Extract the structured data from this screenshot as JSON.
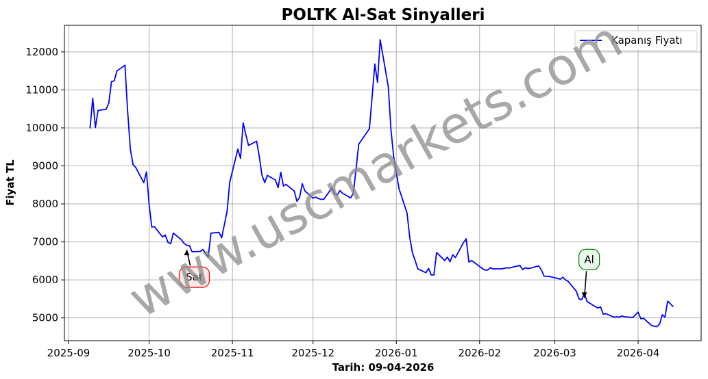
{
  "chart_data": {
    "type": "line",
    "title": "POLTK Al-Sat Sinyalleri",
    "xlabel": "Tarih: 09-04-2026",
    "ylabel": "Fiyat TL",
    "xlim": [
      "2025-09-01",
      "2026-04-14"
    ],
    "ylim": [
      4400,
      12700
    ],
    "grid": true,
    "legend_position": "top-right",
    "x_ticks": [
      "2025-09",
      "2025-10",
      "2025-11",
      "2025-12",
      "2026-01",
      "2026-02",
      "2026-03",
      "2026-04"
    ],
    "y_ticks": [
      5000,
      6000,
      7000,
      8000,
      9000,
      10000,
      11000,
      12000
    ],
    "series": [
      {
        "name": "Kapanış Fiyatı",
        "color": "#0000ff",
        "points": [
          [
            "2025-09-09",
            10000
          ],
          [
            "2025-09-10",
            10780
          ],
          [
            "2025-09-11",
            10010
          ],
          [
            "2025-09-12",
            10460
          ],
          [
            "2025-09-15",
            10490
          ],
          [
            "2025-09-16",
            10660
          ],
          [
            "2025-09-17",
            11220
          ],
          [
            "2025-09-18",
            11240
          ],
          [
            "2025-09-19",
            11500
          ],
          [
            "2025-09-22",
            11650
          ],
          [
            "2025-09-23",
            10450
          ],
          [
            "2025-09-24",
            9440
          ],
          [
            "2025-09-25",
            9040
          ],
          [
            "2025-09-26",
            8960
          ],
          [
            "2025-09-29",
            8560
          ],
          [
            "2025-09-30",
            8840
          ],
          [
            "2025-10-01",
            7980
          ],
          [
            "2025-10-02",
            7390
          ],
          [
            "2025-10-03",
            7400
          ],
          [
            "2025-10-06",
            7130
          ],
          [
            "2025-10-07",
            7180
          ],
          [
            "2025-10-08",
            6990
          ],
          [
            "2025-10-09",
            6950
          ],
          [
            "2025-10-10",
            7230
          ],
          [
            "2025-10-13",
            7060
          ],
          [
            "2025-10-14",
            6960
          ],
          [
            "2025-10-15",
            6910
          ],
          [
            "2025-10-16",
            6900
          ],
          [
            "2025-10-17",
            6740
          ],
          [
            "2025-10-20",
            6750
          ],
          [
            "2025-10-21",
            6800
          ],
          [
            "2025-10-22",
            6700
          ],
          [
            "2025-10-23",
            6600
          ],
          [
            "2025-10-24",
            7230
          ],
          [
            "2025-10-27",
            7250
          ],
          [
            "2025-10-28",
            7110
          ],
          [
            "2025-10-30",
            7800
          ],
          [
            "2025-10-31",
            8570
          ],
          [
            "2025-11-03",
            9440
          ],
          [
            "2025-11-04",
            9200
          ],
          [
            "2025-11-05",
            10130
          ],
          [
            "2025-11-06",
            9820
          ],
          [
            "2025-11-07",
            9540
          ],
          [
            "2025-11-10",
            9650
          ],
          [
            "2025-11-11",
            9250
          ],
          [
            "2025-11-12",
            8760
          ],
          [
            "2025-11-13",
            8560
          ],
          [
            "2025-11-14",
            8750
          ],
          [
            "2025-11-17",
            8630
          ],
          [
            "2025-11-18",
            8430
          ],
          [
            "2025-11-19",
            8830
          ],
          [
            "2025-11-20",
            8470
          ],
          [
            "2025-11-21",
            8510
          ],
          [
            "2025-11-24",
            8340
          ],
          [
            "2025-11-25",
            8070
          ],
          [
            "2025-11-26",
            8170
          ],
          [
            "2025-11-27",
            8530
          ],
          [
            "2025-11-28",
            8340
          ],
          [
            "2025-12-01",
            8150
          ],
          [
            "2025-12-02",
            8180
          ],
          [
            "2025-12-03",
            8140
          ],
          [
            "2025-12-04",
            8120
          ],
          [
            "2025-12-05",
            8120
          ],
          [
            "2025-12-08",
            8420
          ],
          [
            "2025-12-09",
            8270
          ],
          [
            "2025-12-10",
            8230
          ],
          [
            "2025-12-11",
            8350
          ],
          [
            "2025-12-12",
            8280
          ],
          [
            "2025-12-15",
            8160
          ],
          [
            "2025-12-16",
            8280
          ],
          [
            "2025-12-17",
            8900
          ],
          [
            "2025-12-18",
            9570
          ],
          [
            "2025-12-22",
            9980
          ],
          [
            "2025-12-23",
            10830
          ],
          [
            "2025-12-24",
            11680
          ],
          [
            "2025-12-25",
            11200
          ],
          [
            "2025-12-26",
            12320
          ],
          [
            "2025-12-29",
            11090
          ],
          [
            "2025-12-30",
            9960
          ],
          [
            "2025-12-31",
            9260
          ],
          [
            "2026-01-02",
            8400
          ],
          [
            "2026-01-05",
            7760
          ],
          [
            "2026-01-06",
            7120
          ],
          [
            "2026-01-07",
            6710
          ],
          [
            "2026-01-08",
            6510
          ],
          [
            "2026-01-09",
            6290
          ],
          [
            "2026-01-12",
            6190
          ],
          [
            "2026-01-13",
            6300
          ],
          [
            "2026-01-14",
            6130
          ],
          [
            "2026-01-15",
            6130
          ],
          [
            "2026-01-16",
            6720
          ],
          [
            "2026-01-19",
            6510
          ],
          [
            "2026-01-20",
            6600
          ],
          [
            "2026-01-21",
            6480
          ],
          [
            "2026-01-22",
            6660
          ],
          [
            "2026-01-23",
            6590
          ],
          [
            "2026-01-26",
            6980
          ],
          [
            "2026-01-27",
            7080
          ],
          [
            "2026-01-28",
            6470
          ],
          [
            "2026-01-29",
            6510
          ],
          [
            "2026-01-30",
            6460
          ],
          [
            "2026-02-02",
            6300
          ],
          [
            "2026-02-03",
            6260
          ],
          [
            "2026-02-04",
            6260
          ],
          [
            "2026-02-05",
            6320
          ],
          [
            "2026-02-06",
            6290
          ],
          [
            "2026-02-09",
            6290
          ],
          [
            "2026-02-10",
            6300
          ],
          [
            "2026-02-11",
            6320
          ],
          [
            "2026-02-12",
            6310
          ],
          [
            "2026-02-13",
            6330
          ],
          [
            "2026-02-16",
            6380
          ],
          [
            "2026-02-17",
            6270
          ],
          [
            "2026-02-18",
            6320
          ],
          [
            "2026-02-19",
            6300
          ],
          [
            "2026-02-20",
            6310
          ],
          [
            "2026-02-23",
            6370
          ],
          [
            "2026-02-24",
            6260
          ],
          [
            "2026-02-25",
            6100
          ],
          [
            "2026-02-27",
            6090
          ],
          [
            "2026-03-02",
            6040
          ],
          [
            "2026-03-03",
            6020
          ],
          [
            "2026-03-04",
            6070
          ],
          [
            "2026-03-05",
            6000
          ],
          [
            "2026-03-06",
            5960
          ],
          [
            "2026-03-09",
            5700
          ],
          [
            "2026-03-10",
            5500
          ],
          [
            "2026-03-11",
            5480
          ],
          [
            "2026-03-12",
            5640
          ],
          [
            "2026-03-13",
            5430
          ],
          [
            "2026-03-16",
            5300
          ],
          [
            "2026-03-17",
            5260
          ],
          [
            "2026-03-18",
            5290
          ],
          [
            "2026-03-19",
            5100
          ],
          [
            "2026-03-20",
            5110
          ],
          [
            "2026-03-23",
            5020
          ],
          [
            "2026-03-24",
            5030
          ],
          [
            "2026-03-25",
            5020
          ],
          [
            "2026-03-26",
            5050
          ],
          [
            "2026-03-27",
            5030
          ],
          [
            "2026-03-30",
            5010
          ],
          [
            "2026-04-01",
            5150
          ],
          [
            "2026-04-02",
            4980
          ],
          [
            "2026-04-03",
            4990
          ],
          [
            "2026-04-06",
            4800
          ],
          [
            "2026-04-07",
            4780
          ],
          [
            "2026-04-08",
            4770
          ],
          [
            "2026-04-09",
            4840
          ],
          [
            "2026-04-10",
            5080
          ],
          [
            "2026-04-11",
            5020
          ],
          [
            "2026-04-12",
            5440
          ],
          [
            "2026-04-13",
            5370
          ],
          [
            "2026-04-14",
            5300
          ]
        ]
      }
    ],
    "annotations": [
      {
        "label": "Sat",
        "kind": "sell",
        "point": [
          "2025-10-15",
          6900
        ],
        "box_color": "#ff0000",
        "box_fill": "#fde8e8"
      },
      {
        "label": "Al",
        "kind": "buy",
        "point": [
          "2026-03-12",
          5600
        ],
        "box_color": "#008000",
        "box_fill": "#ecf7ec"
      }
    ],
    "watermark": "www.uscmarkets.com"
  }
}
